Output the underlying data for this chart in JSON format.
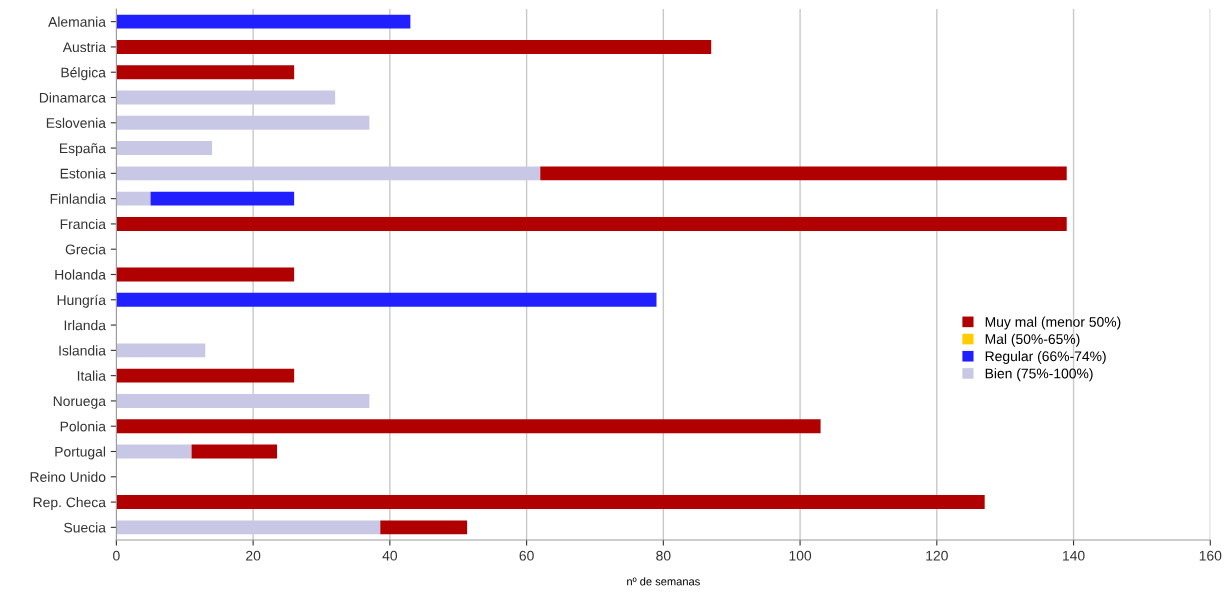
{
  "chart_data": {
    "type": "bar",
    "orientation": "horizontal",
    "stacked": true,
    "xlabel": "nº de semanas",
    "categories": [
      "Alemania",
      "Austria",
      "Bélgica",
      "Dinamarca",
      "Eslovenia",
      "España",
      "Estonia",
      "Finlandia",
      "Francia",
      "Grecia",
      "Holanda",
      "Hungría",
      "Irlanda",
      "Islandia",
      "Italia",
      "Noruega",
      "Polonia",
      "Portugal",
      "Reino Unido",
      "Rep. Checa",
      "Suecia"
    ],
    "series": [
      {
        "name": "Bien (75%-100%)",
        "color": "#c8c8e6",
        "values": [
          null,
          null,
          null,
          32,
          37,
          14,
          62,
          5,
          null,
          null,
          null,
          null,
          null,
          13,
          null,
          37,
          null,
          11,
          null,
          null,
          38.6
        ]
      },
      {
        "name": "Regular (66%-74%)",
        "color": "#2020ff",
        "values": [
          43,
          null,
          null,
          null,
          null,
          null,
          null,
          21,
          null,
          null,
          null,
          79,
          null,
          null,
          null,
          null,
          null,
          null,
          null,
          null,
          null
        ]
      },
      {
        "name": "Mal (50%-65%)",
        "color": "#ffcc00",
        "values": [
          null,
          null,
          null,
          null,
          null,
          null,
          null,
          null,
          null,
          null,
          null,
          null,
          null,
          null,
          null,
          null,
          null,
          null,
          null,
          null,
          null
        ]
      },
      {
        "name": "Muy mal (menor 50%)",
        "color": "#b00000",
        "values": [
          null,
          87,
          26,
          null,
          null,
          null,
          77,
          null,
          139,
          null,
          26,
          null,
          null,
          null,
          26,
          null,
          103,
          12.5,
          null,
          127,
          12.7
        ]
      }
    ],
    "xlim": [
      0,
      160
    ],
    "xticks": [
      0,
      20,
      40,
      60,
      80,
      100,
      120,
      140,
      160
    ],
    "grid": "x",
    "legend": "right"
  }
}
